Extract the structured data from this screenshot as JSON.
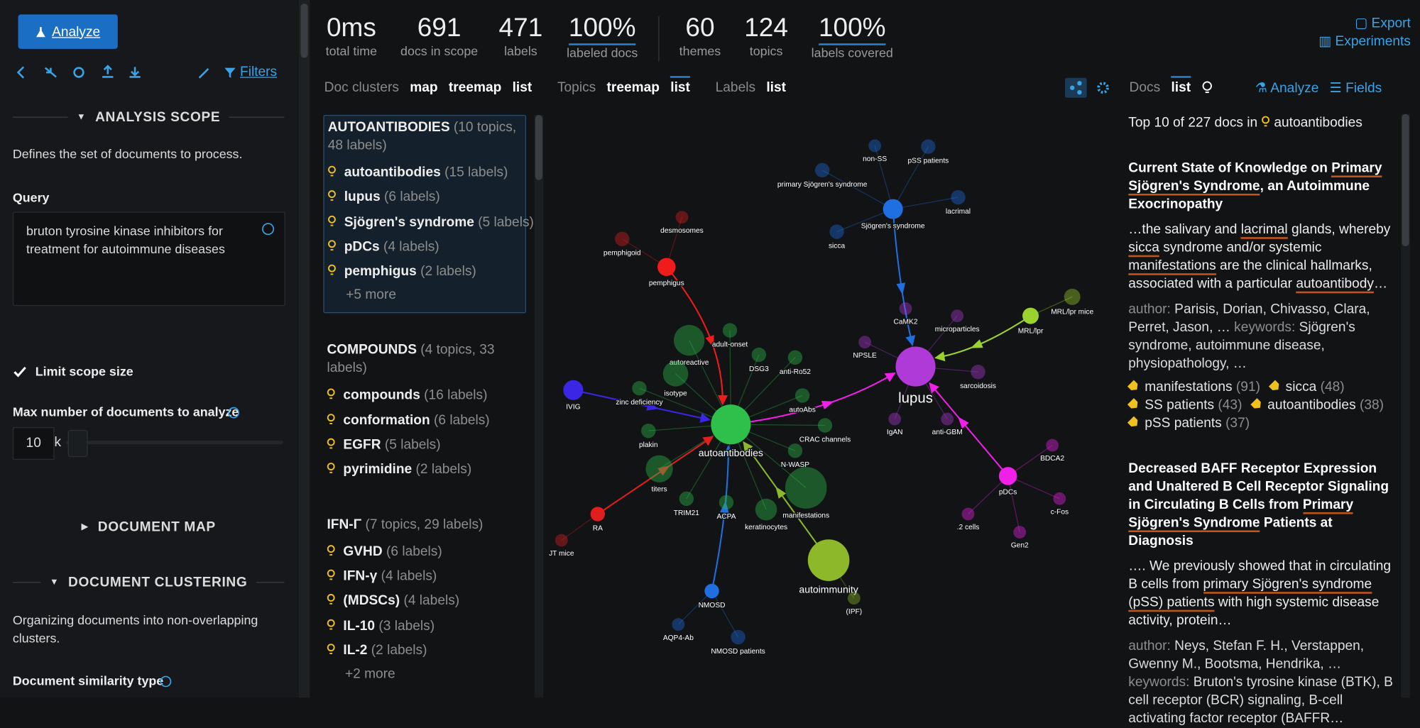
{
  "sidebar": {
    "analyze_button": "Analyze",
    "filters": "Filters",
    "analysis_scope": {
      "title": "ANALYSIS SCOPE",
      "description": "Defines the set of documents to process.",
      "query_label": "Query",
      "query": "bruton tyrosine kinase inhibitors for treatment for autoimmune diseases",
      "limit_label": "Limit scope size",
      "max_docs_label": "Max number of documents to analyze",
      "max_docs_value": "10",
      "max_docs_unit": "k"
    },
    "document_map": {
      "title": "DOCUMENT MAP"
    },
    "document_clustering": {
      "title": "DOCUMENT CLUSTERING",
      "description": "Organizing documents into non-overlapping clusters.",
      "similarity_label": "Document similarity type"
    }
  },
  "stats": [
    {
      "value": "0ms",
      "label": "total time"
    },
    {
      "value": "691",
      "label": "docs in scope"
    },
    {
      "value": "471",
      "label": "labels"
    },
    {
      "value": "100%",
      "label": "labeled docs"
    },
    {
      "value": "60",
      "label": "themes"
    },
    {
      "value": "124",
      "label": "topics"
    },
    {
      "value": "100%",
      "label": "labels covered"
    }
  ],
  "actions": {
    "export": "Export",
    "experiments": "Experiments"
  },
  "view_tabs": [
    {
      "label": "Doc clusters",
      "options": [
        "map",
        "treemap",
        "list"
      ]
    },
    {
      "label": "Topics",
      "options": [
        "treemap",
        "list"
      ]
    },
    {
      "label": "Labels",
      "options": [
        "list"
      ]
    }
  ],
  "clusters": [
    {
      "name": "AUTOANTIBODIES",
      "meta": "(10 topics, 48 labels)",
      "topics": [
        {
          "name": "autoantibodies",
          "meta": "(15 labels)"
        },
        {
          "name": "lupus",
          "meta": "(6 labels)"
        },
        {
          "name": "Sjögren's syndrome",
          "meta": "(5 labels)"
        },
        {
          "name": "pDCs",
          "meta": "(4 labels)"
        },
        {
          "name": "pemphigus",
          "meta": "(2 labels)"
        }
      ],
      "more": "+5 more"
    },
    {
      "name": "COMPOUNDS",
      "meta": "(4 topics, 33 labels)",
      "topics": [
        {
          "name": "compounds",
          "meta": "(16 labels)"
        },
        {
          "name": "conformation",
          "meta": "(6 labels)"
        },
        {
          "name": "EGFR",
          "meta": "(5 labels)"
        },
        {
          "name": "pyrimidine",
          "meta": "(2 labels)"
        }
      ]
    },
    {
      "name": "IFN-Γ",
      "meta": "(7 topics, 29 labels)",
      "topics": [
        {
          "name": "GVHD",
          "meta": "(6 labels)"
        },
        {
          "name": "IFN-γ",
          "meta": "(4 labels)"
        },
        {
          "name": "(MDSCs)",
          "meta": "(4 labels)"
        },
        {
          "name": "IL-10",
          "meta": "(3 labels)"
        },
        {
          "name": "IL-2",
          "meta": "(2 labels)"
        }
      ],
      "more": "+2 more"
    }
  ],
  "graph": {
    "nodes": [
      {
        "label": "autoantibodies"
      },
      {
        "label": "lupus"
      },
      {
        "label": "autoimmunity"
      },
      {
        "label": "Sjögren's syndrome"
      },
      {
        "label": "pemphigus"
      },
      {
        "label": "IVIG"
      },
      {
        "label": "NMOSD"
      },
      {
        "label": "RA"
      },
      {
        "label": "pDCs"
      },
      {
        "label": "MRL/lpr"
      },
      {
        "label": "desmosomes"
      },
      {
        "label": "pemphigoid"
      },
      {
        "label": "non-SS"
      },
      {
        "label": "pSS patients"
      },
      {
        "label": "primary Sjögren's syndrome"
      },
      {
        "label": "lacrimal"
      },
      {
        "label": "sicca"
      },
      {
        "label": "MRL/lpr mice"
      },
      {
        "label": "CaMK2"
      },
      {
        "label": "microparticles"
      },
      {
        "label": "NPSLE"
      },
      {
        "label": "sarcoidosis"
      },
      {
        "label": "IgAN"
      },
      {
        "label": "anti-GBM"
      },
      {
        "label": "BDCA2"
      },
      {
        "label": "c-Fos"
      },
      {
        "label": ".2 cells"
      },
      {
        "label": "Gen2"
      },
      {
        "label": "JT mice"
      },
      {
        "label": "adult-onset"
      },
      {
        "label": "autoreactive"
      },
      {
        "label": "DSG3"
      },
      {
        "label": "anti-Ro52"
      },
      {
        "label": "isotype"
      },
      {
        "label": "zinc deficiency"
      },
      {
        "label": "autoAbs"
      },
      {
        "label": "CRAC channels"
      },
      {
        "label": "plakin"
      },
      {
        "label": "N-WASP"
      },
      {
        "label": "titers"
      },
      {
        "label": "manifestations"
      },
      {
        "label": "TRIM21"
      },
      {
        "label": "ACPA"
      },
      {
        "label": "keratinocytes"
      },
      {
        "label": "AQP4-Ab"
      },
      {
        "label": "NMOSD patients"
      },
      {
        "label": "(IPF)"
      }
    ]
  },
  "docs_panel": {
    "tabs": [
      "Docs",
      "list"
    ],
    "analyze": "Analyze",
    "fields": "Fields",
    "heading": "Top 10 of 227 docs in",
    "heading_topic": "autoantibodies",
    "author_label": "author:",
    "keywords_label": "keywords:",
    "docs": [
      {
        "title": [
          {
            "text": "Current State of Knowledge on "
          },
          {
            "text": "Primary Sjögren's Syndrome",
            "highlight": true
          },
          {
            "text": ", an Autoimmune Exocrinopathy"
          }
        ],
        "snippet": [
          {
            "text": "…the salivary and "
          },
          {
            "text": "lacrimal",
            "highlight": true
          },
          {
            "text": " glands, whereby "
          },
          {
            "text": "sicca",
            "highlight": true
          },
          {
            "text": " syndrome and/or systemic "
          },
          {
            "text": "manifestations",
            "highlight": true
          },
          {
            "text": " are the clinical hallmarks, associated with a particular "
          },
          {
            "text": "autoantibody",
            "highlight": true
          },
          {
            "text": "…"
          }
        ],
        "author": "Parisis, Dorian, Chivasso, Clara, Perret, Jason, …",
        "keywords": "Sjögren's syndrome, autoimmune disease, physiopathology, …",
        "tags": [
          {
            "name": "manifestations",
            "count": "(91)"
          },
          {
            "name": "sicca",
            "count": "(48)"
          },
          {
            "name": "SS patients",
            "count": "(43)"
          },
          {
            "name": "autoantibodies",
            "count": "(38)"
          },
          {
            "name": "pSS patients",
            "count": "(37)"
          }
        ]
      },
      {
        "title": [
          {
            "text": "Decreased BAFF Receptor Expression and Unaltered B Cell Receptor Signaling in Circulating B Cells from "
          },
          {
            "text": "Primary Sjögren's Syndrome",
            "highlight": true
          },
          {
            "text": " Patients at Diagnosis"
          }
        ],
        "snippet": [
          {
            "text": "…. We previously showed that in circulating B cells from "
          },
          {
            "text": "primary Sjögren's syndrome (pSS) patients",
            "highlight": true
          },
          {
            "text": " with high systemic disease activity, protein…"
          }
        ],
        "author": "Neys, Stefan F. H., Verstappen, Gwenny M., Bootsma, Hendrika, …",
        "keywords": "Bruton's tyrosine kinase (BTK), B cell receptor (BCR) signaling, B-cell activating factor receptor (BAFFR…",
        "tags": []
      }
    ]
  }
}
